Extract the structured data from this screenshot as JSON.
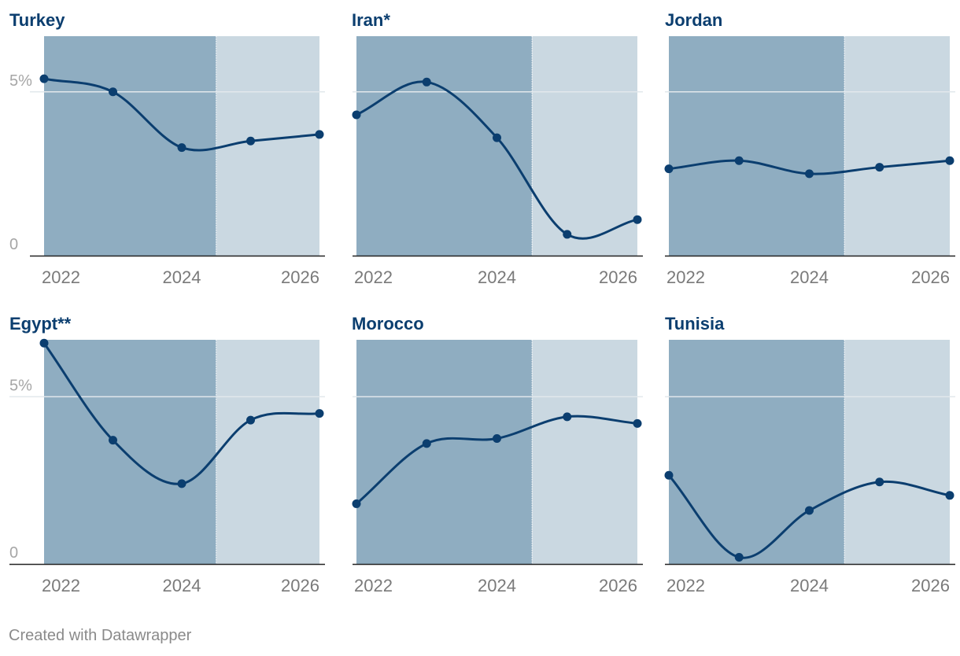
{
  "footer": "Created with Datawrapper",
  "colors": {
    "line": "#0b3e6f",
    "historical": "#8fadc1",
    "forecast": "#cad8e1",
    "axis": "#222222",
    "tick_text": "#7a7a7a",
    "title": "#0b3e6f"
  },
  "chart_data": [
    {
      "type": "line",
      "title": "Turkey",
      "x": [
        2021.6,
        2022.8,
        2024.0,
        2025.2,
        2026.4
      ],
      "values": [
        5.4,
        5.0,
        3.3,
        3.5,
        3.7
      ],
      "xticks": [
        "2022",
        "2024",
        "2026"
      ],
      "yticks": [
        "0",
        "5%"
      ],
      "ylim": [
        0,
        6.7
      ],
      "xlim": [
        2021.6,
        2026.4
      ],
      "forecast_from": 2024.6,
      "show_y_labels": true
    },
    {
      "type": "line",
      "title": "Iran*",
      "x": [
        2021.6,
        2022.8,
        2024.0,
        2025.2,
        2026.4
      ],
      "values": [
        4.3,
        5.3,
        3.6,
        0.65,
        1.1
      ],
      "xticks": [
        "2022",
        "2024",
        "2026"
      ],
      "yticks": [
        "0",
        "5%"
      ],
      "ylim": [
        0,
        6.7
      ],
      "xlim": [
        2021.6,
        2026.4
      ],
      "forecast_from": 2024.6,
      "show_y_labels": false
    },
    {
      "type": "line",
      "title": "Jordan",
      "x": [
        2021.6,
        2022.8,
        2024.0,
        2025.2,
        2026.4
      ],
      "values": [
        2.65,
        2.9,
        2.5,
        2.7,
        2.9
      ],
      "xticks": [
        "2022",
        "2024",
        "2026"
      ],
      "yticks": [
        "0",
        "5%"
      ],
      "ylim": [
        0,
        6.7
      ],
      "xlim": [
        2021.6,
        2026.4
      ],
      "forecast_from": 2024.6,
      "show_y_labels": false
    },
    {
      "type": "line",
      "title": "Egypt**",
      "x": [
        2021.6,
        2022.8,
        2024.0,
        2025.2,
        2026.4
      ],
      "values": [
        6.6,
        3.7,
        2.4,
        4.3,
        4.5
      ],
      "xticks": [
        "2022",
        "2024",
        "2026"
      ],
      "yticks": [
        "0",
        "5%"
      ],
      "ylim": [
        0,
        6.7
      ],
      "xlim": [
        2021.6,
        2026.4
      ],
      "forecast_from": 2024.6,
      "show_y_labels": true
    },
    {
      "type": "line",
      "title": "Morocco",
      "x": [
        2021.6,
        2022.8,
        2024.0,
        2025.2,
        2026.4
      ],
      "values": [
        1.8,
        3.6,
        3.75,
        4.4,
        4.2
      ],
      "xticks": [
        "2022",
        "2024",
        "2026"
      ],
      "yticks": [
        "0",
        "5%"
      ],
      "ylim": [
        0,
        6.7
      ],
      "xlim": [
        2021.6,
        2026.4
      ],
      "forecast_from": 2024.6,
      "show_y_labels": false
    },
    {
      "type": "line",
      "title": "Tunisia",
      "x": [
        2021.6,
        2022.8,
        2024.0,
        2025.2,
        2026.4
      ],
      "values": [
        2.65,
        0.2,
        1.6,
        2.45,
        2.05
      ],
      "xticks": [
        "2022",
        "2024",
        "2026"
      ],
      "yticks": [
        "0",
        "5%"
      ],
      "ylim": [
        0,
        6.7
      ],
      "xlim": [
        2021.6,
        2026.4
      ],
      "forecast_from": 2024.6,
      "show_y_labels": false
    }
  ]
}
